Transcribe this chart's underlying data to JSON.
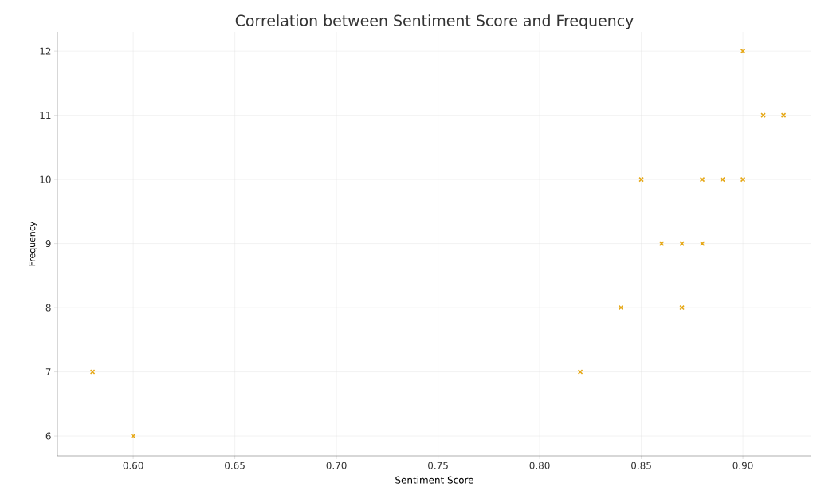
{
  "chart_data": {
    "type": "scatter",
    "title": "Correlation between Sentiment Score and Frequency",
    "xlabel": "Sentiment Score",
    "ylabel": "Frequency",
    "x": [
      0.58,
      0.6,
      0.82,
      0.84,
      0.85,
      0.86,
      0.87,
      0.87,
      0.88,
      0.88,
      0.89,
      0.9,
      0.9,
      0.91,
      0.92
    ],
    "values": [
      7,
      6,
      7,
      8,
      10,
      9,
      9,
      8,
      10,
      9,
      10,
      10,
      12,
      11,
      11
    ],
    "color": "#e6a817",
    "marker": "cross",
    "grid": true,
    "xlim": [
      0.5627,
      0.9337
    ],
    "ylim": [
      5.69,
      12.3
    ],
    "xticks": [
      {
        "value": 0.6,
        "label": "0.60"
      },
      {
        "value": 0.65,
        "label": "0.65"
      },
      {
        "value": 0.7,
        "label": "0.70"
      },
      {
        "value": 0.75,
        "label": "0.75"
      },
      {
        "value": 0.8,
        "label": "0.80"
      },
      {
        "value": 0.85,
        "label": "0.85"
      },
      {
        "value": 0.9,
        "label": "0.90"
      }
    ],
    "yticks": [
      6,
      7,
      8,
      9,
      10,
      11,
      12
    ]
  }
}
